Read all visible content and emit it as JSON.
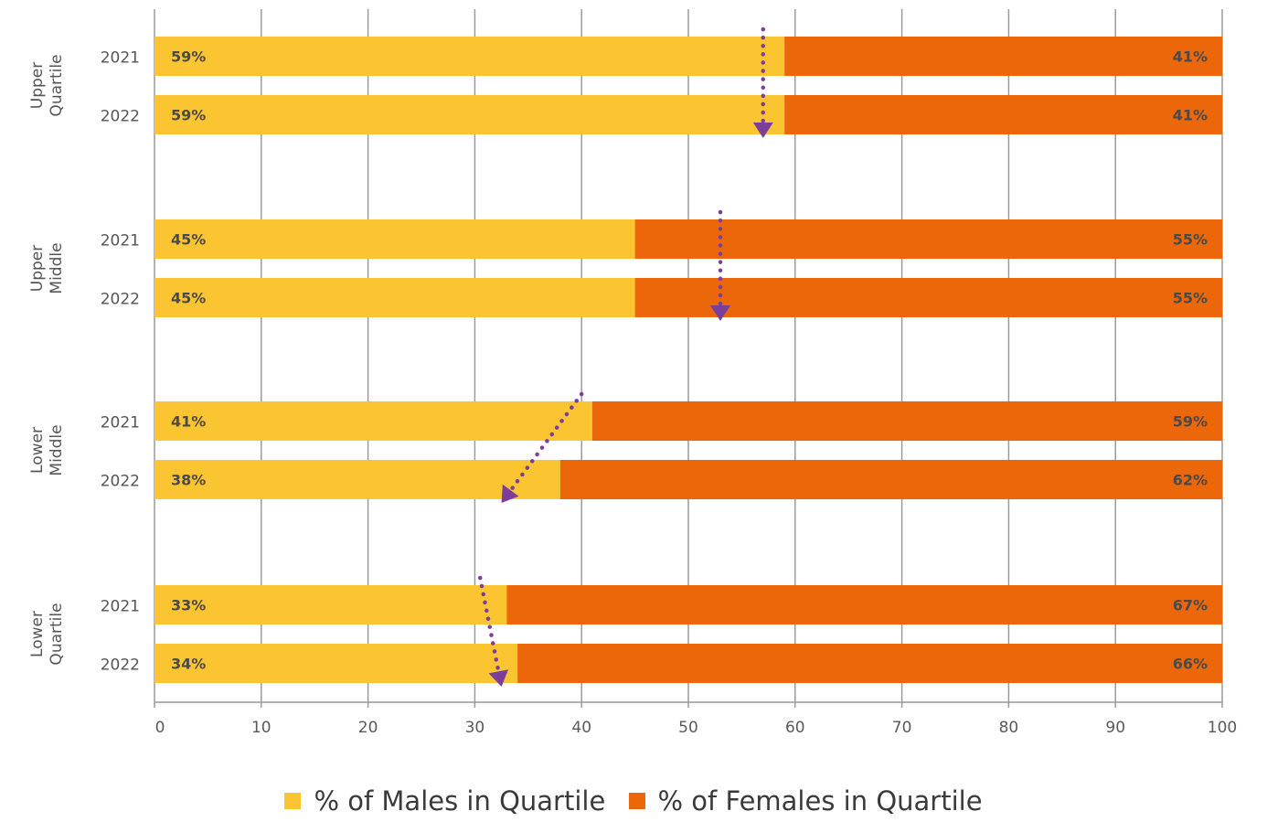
{
  "chart_data": {
    "type": "bar",
    "orientation": "horizontal",
    "stacked": true,
    "xlim": [
      0,
      100
    ],
    "x_ticks": [
      0,
      10,
      20,
      30,
      40,
      50,
      60,
      70,
      80,
      90,
      100
    ],
    "grid": true,
    "legend_position": "bottom-center",
    "groups": [
      "Upper Quartile",
      "Upper Middle",
      "Lower Middle",
      "Lower Quartile"
    ],
    "years": [
      "2021",
      "2022"
    ],
    "series": [
      {
        "name": "% of Males in Quartile",
        "color": "#FBC531",
        "values": [
          [
            59,
            59
          ],
          [
            45,
            45
          ],
          [
            41,
            38
          ],
          [
            33,
            34
          ]
        ],
        "labels": [
          [
            "59%",
            "59%"
          ],
          [
            "45%",
            "45%"
          ],
          [
            "41%",
            "38%"
          ],
          [
            "33%",
            "34%"
          ]
        ]
      },
      {
        "name": "% of Females in Quartile",
        "color": "#EB6709",
        "values": [
          [
            41,
            41
          ],
          [
            55,
            55
          ],
          [
            59,
            62
          ],
          [
            67,
            66
          ]
        ],
        "labels": [
          [
            "41%",
            "41%"
          ],
          [
            "55%",
            "55%"
          ],
          [
            "59%",
            "62%"
          ],
          [
            "67%",
            "66%"
          ]
        ]
      }
    ],
    "trend_arrows": {
      "color": "#7B3F9B",
      "from_to": [
        [
          57,
          57
        ],
        [
          53,
          53
        ],
        [
          40,
          32.5
        ],
        [
          30.5,
          32.5
        ]
      ]
    }
  }
}
